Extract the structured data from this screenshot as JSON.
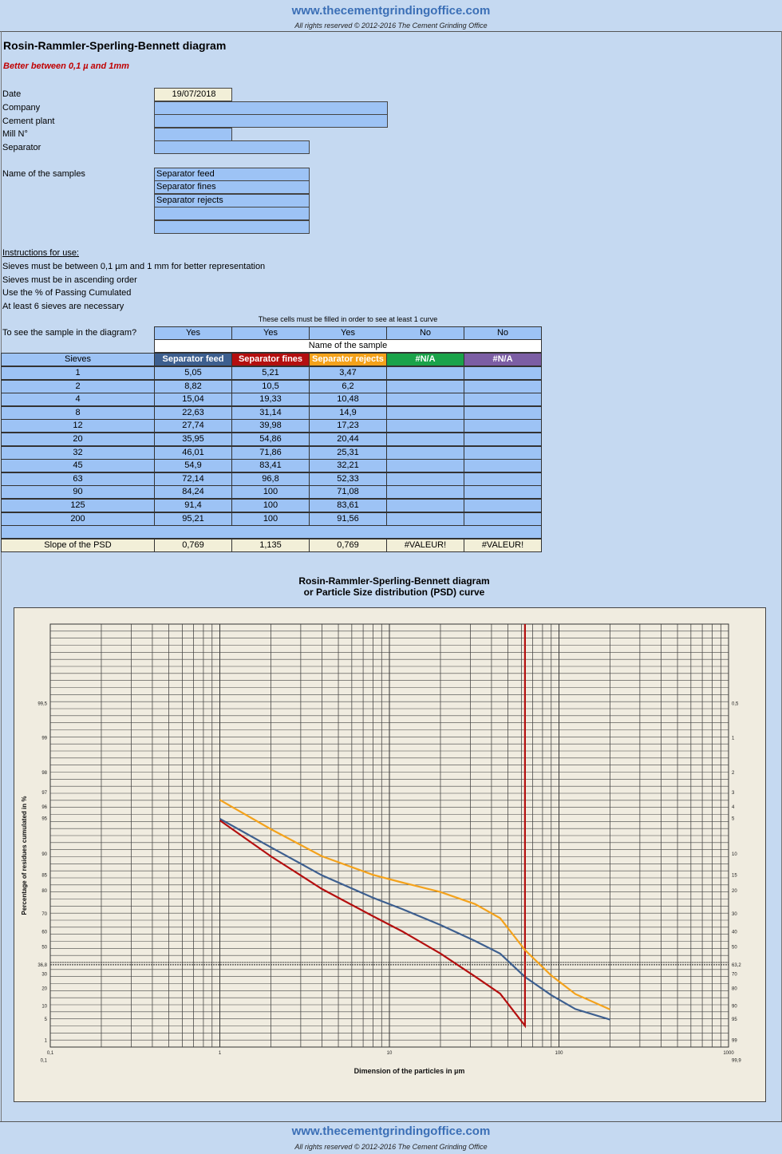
{
  "header": {
    "site": "www.thecementgrindingoffice.com",
    "rights": "All rights reserved © 2012-2016 The Cement Grinding Office"
  },
  "footer": {
    "site": "www.thecementgrindingoffice.com",
    "rights": "All rights reserved © 2012-2016 The Cement Grinding Office"
  },
  "page": {
    "title": "Rosin-Rammler-Sperling-Bennett diagram",
    "subtitle": "Better between 0,1 µ  and 1mm"
  },
  "form": {
    "date_label": "Date",
    "date_value": "19/07/2018",
    "company_label": "Company",
    "company_value": "",
    "plant_label": "Cement plant",
    "plant_value": "",
    "mill_label": "Mill N°",
    "mill_value": "",
    "separator_label": "Separator",
    "separator_value": "",
    "samples_label": "Name of the samples",
    "samples": [
      "Separator feed",
      "Separator fines",
      "Separator rejects",
      "",
      ""
    ]
  },
  "instructions": {
    "heading": "Instructions for use:",
    "lines": [
      "Sieves must be between 0,1 µm and 1 mm for better representation",
      "Sieves must be in ascending order",
      "Use the % of Passing Cumulated",
      "At least 6 sieves are necessary"
    ]
  },
  "table": {
    "note": "These cells must be filled in order to see at least 1 curve",
    "see_label": "To see the sample in the diagram?",
    "see_values": [
      "Yes",
      "Yes",
      "Yes",
      "No",
      "No"
    ],
    "name_header": "Name of the sample",
    "sieves_header": "Sieves",
    "col_headers": [
      "Separator feed",
      "Separator fines",
      "Separator rejects",
      "#N/A",
      "#N/A"
    ],
    "col_colors": [
      "#3d5f8f",
      "#b40f0f",
      "#f4a21b",
      "#1aa34a",
      "#7c5ea4"
    ],
    "rows": [
      [
        "1",
        "5,05",
        "5,21",
        "3,47",
        "",
        ""
      ],
      [
        "2",
        "8,82",
        "10,5",
        "6,2",
        "",
        ""
      ],
      [
        "4",
        "15,04",
        "19,33",
        "10,48",
        "",
        ""
      ],
      [
        "8",
        "22,63",
        "31,14",
        "14,9",
        "",
        ""
      ],
      [
        "12",
        "27,74",
        "39,98",
        "17,23",
        "",
        ""
      ],
      [
        "20",
        "35,95",
        "54,86",
        "20,44",
        "",
        ""
      ],
      [
        "32",
        "46,01",
        "71,86",
        "25,31",
        "",
        ""
      ],
      [
        "45",
        "54,9",
        "83,41",
        "32,21",
        "",
        ""
      ],
      [
        "63",
        "72,14",
        "96,8",
        "52,33",
        "",
        ""
      ],
      [
        "90",
        "84,24",
        "100",
        "71,08",
        "",
        ""
      ],
      [
        "125",
        "91,4",
        "100",
        "83,61",
        "",
        ""
      ],
      [
        "200",
        "95,21",
        "100",
        "91,56",
        "",
        ""
      ]
    ],
    "slope_label": "Slope of the PSD",
    "slope_values": [
      "0,769",
      "1,135",
      "0,769",
      "#VALEUR!",
      "#VALEUR!"
    ]
  },
  "chart_data": {
    "type": "line",
    "title": "Rosin-Rammler-Sperling-Bennett diagram",
    "subtitle": "or Particle Size distribution (PSD) curve",
    "xlabel": "Dimension of the particles in µm",
    "ylabel": "Percentage of residues cumulated in %",
    "x_scale": "log",
    "xlim": [
      0.1,
      1000
    ],
    "x_ticks": [
      "0,1",
      "1",
      "10",
      "100",
      "1000"
    ],
    "y_scale": "rosin-rammler",
    "left_ticks": [
      "0,1",
      "1",
      "5",
      "10",
      "20",
      "30",
      "36,8",
      "50",
      "60",
      "70",
      "80",
      "85",
      "90",
      "95",
      "96",
      "97",
      "98",
      "99",
      "99,5"
    ],
    "right_ticks": [
      "99,9",
      "99",
      "95",
      "90",
      "80",
      "70",
      "63,2",
      "50",
      "40",
      "30",
      "20",
      "15",
      "10",
      "5",
      "4",
      "3",
      "2",
      "1",
      "0,5"
    ],
    "grid": true,
    "series": [
      {
        "name": "Separator feed",
        "color": "#3d5f8f",
        "x": [
          1,
          2,
          4,
          8,
          12,
          20,
          32,
          45,
          63,
          90,
          125,
          200
        ],
        "passing": [
          5.05,
          8.82,
          15.04,
          22.63,
          27.74,
          35.95,
          46.01,
          54.9,
          72.14,
          84.24,
          91.4,
          95.21
        ]
      },
      {
        "name": "Separator fines",
        "color": "#b40f0f",
        "x": [
          1,
          2,
          4,
          8,
          12,
          20,
          32,
          45,
          63,
          90,
          125,
          200
        ],
        "passing": [
          5.21,
          10.5,
          19.33,
          31.14,
          39.98,
          54.86,
          71.86,
          83.41,
          96.8,
          100,
          100,
          100
        ]
      },
      {
        "name": "Separator rejects",
        "color": "#f4a21b",
        "x": [
          1,
          2,
          4,
          8,
          12,
          20,
          32,
          45,
          63,
          90,
          125,
          200
        ],
        "passing": [
          3.47,
          6.2,
          10.48,
          14.9,
          17.23,
          20.44,
          25.31,
          32.21,
          52.33,
          71.08,
          83.61,
          91.56
        ]
      }
    ]
  }
}
